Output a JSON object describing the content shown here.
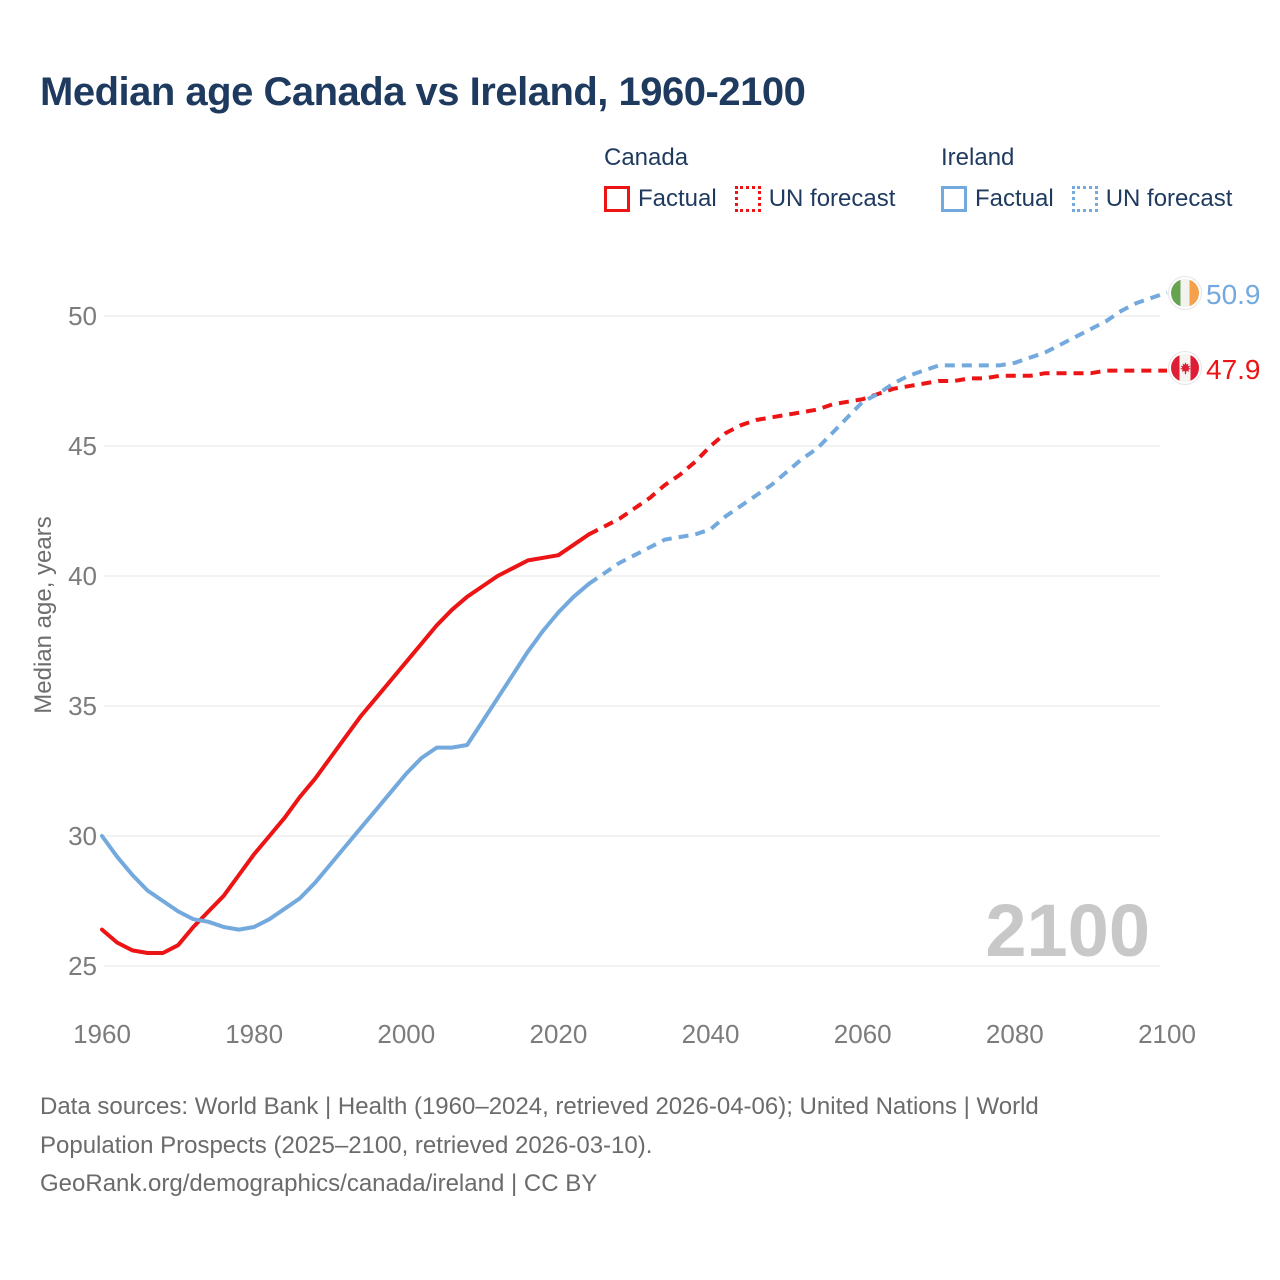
{
  "title": "Median age Canada vs Ireland, 1960-2100",
  "legend": {
    "canada_header": "Canada",
    "ireland_header": "Ireland",
    "factual_label": "Factual",
    "forecast_label": "UN forecast"
  },
  "colors": {
    "canada": "#ec1414",
    "ireland": "#73a9dd",
    "grid": "#ededed",
    "tick_text": "#7c7c7c",
    "title_text": "#1e3a5f",
    "watermark": "#c8c8c8"
  },
  "watermark": "2100",
  "chart_data": {
    "type": "line",
    "title": "Median age Canada vs Ireland, 1960-2100",
    "xlabel": "",
    "ylabel": "Median age, years",
    "x_ticks": [
      "1960",
      "1980",
      "2000",
      "2020",
      "2040",
      "2060",
      "2080",
      "2100"
    ],
    "y_ticks": [
      "25",
      "30",
      "35",
      "40",
      "45",
      "50"
    ],
    "xlim": [
      1960,
      2100
    ],
    "ylim": [
      25,
      51
    ],
    "grid": "horizontal only",
    "legend_position": "top-right",
    "series": [
      {
        "name": "Canada Factual",
        "color_key": "canada",
        "style": "solid",
        "points": [
          [
            1960,
            26.4
          ],
          [
            1962,
            25.9
          ],
          [
            1964,
            25.6
          ],
          [
            1966,
            25.5
          ],
          [
            1968,
            25.5
          ],
          [
            1970,
            25.8
          ],
          [
            1972,
            26.5
          ],
          [
            1974,
            27.1
          ],
          [
            1976,
            27.7
          ],
          [
            1978,
            28.5
          ],
          [
            1980,
            29.3
          ],
          [
            1982,
            30.0
          ],
          [
            1984,
            30.7
          ],
          [
            1986,
            31.5
          ],
          [
            1988,
            32.2
          ],
          [
            1990,
            33.0
          ],
          [
            1992,
            33.8
          ],
          [
            1994,
            34.6
          ],
          [
            1996,
            35.3
          ],
          [
            1998,
            36.0
          ],
          [
            2000,
            36.7
          ],
          [
            2002,
            37.4
          ],
          [
            2004,
            38.1
          ],
          [
            2006,
            38.7
          ],
          [
            2008,
            39.2
          ],
          [
            2010,
            39.6
          ],
          [
            2012,
            40.0
          ],
          [
            2014,
            40.3
          ],
          [
            2016,
            40.6
          ],
          [
            2018,
            40.7
          ],
          [
            2020,
            40.8
          ],
          [
            2022,
            41.2
          ],
          [
            2024,
            41.6
          ]
        ]
      },
      {
        "name": "Canada UN forecast",
        "color_key": "canada",
        "style": "dashed",
        "points": [
          [
            2024,
            41.6
          ],
          [
            2026,
            41.9
          ],
          [
            2028,
            42.2
          ],
          [
            2030,
            42.6
          ],
          [
            2032,
            43.0
          ],
          [
            2034,
            43.5
          ],
          [
            2036,
            43.9
          ],
          [
            2038,
            44.4
          ],
          [
            2040,
            45.0
          ],
          [
            2042,
            45.5
          ],
          [
            2044,
            45.8
          ],
          [
            2046,
            46.0
          ],
          [
            2048,
            46.1
          ],
          [
            2050,
            46.2
          ],
          [
            2052,
            46.3
          ],
          [
            2054,
            46.4
          ],
          [
            2056,
            46.6
          ],
          [
            2058,
            46.7
          ],
          [
            2060,
            46.8
          ],
          [
            2062,
            47.0
          ],
          [
            2064,
            47.2
          ],
          [
            2066,
            47.3
          ],
          [
            2068,
            47.4
          ],
          [
            2070,
            47.5
          ],
          [
            2072,
            47.5
          ],
          [
            2074,
            47.6
          ],
          [
            2076,
            47.6
          ],
          [
            2078,
            47.7
          ],
          [
            2080,
            47.7
          ],
          [
            2082,
            47.7
          ],
          [
            2084,
            47.8
          ],
          [
            2086,
            47.8
          ],
          [
            2088,
            47.8
          ],
          [
            2090,
            47.8
          ],
          [
            2092,
            47.9
          ],
          [
            2094,
            47.9
          ],
          [
            2096,
            47.9
          ],
          [
            2098,
            47.9
          ],
          [
            2100,
            47.9
          ]
        ]
      },
      {
        "name": "Ireland Factual",
        "color_key": "ireland",
        "style": "solid",
        "points": [
          [
            1960,
            30.0
          ],
          [
            1962,
            29.2
          ],
          [
            1964,
            28.5
          ],
          [
            1966,
            27.9
          ],
          [
            1968,
            27.5
          ],
          [
            1970,
            27.1
          ],
          [
            1972,
            26.8
          ],
          [
            1974,
            26.7
          ],
          [
            1976,
            26.5
          ],
          [
            1978,
            26.4
          ],
          [
            1980,
            26.5
          ],
          [
            1982,
            26.8
          ],
          [
            1984,
            27.2
          ],
          [
            1986,
            27.6
          ],
          [
            1988,
            28.2
          ],
          [
            1990,
            28.9
          ],
          [
            1992,
            29.6
          ],
          [
            1994,
            30.3
          ],
          [
            1996,
            31.0
          ],
          [
            1998,
            31.7
          ],
          [
            2000,
            32.4
          ],
          [
            2002,
            33.0
          ],
          [
            2004,
            33.4
          ],
          [
            2006,
            33.4
          ],
          [
            2008,
            33.5
          ],
          [
            2010,
            34.4
          ],
          [
            2012,
            35.3
          ],
          [
            2014,
            36.2
          ],
          [
            2016,
            37.1
          ],
          [
            2018,
            37.9
          ],
          [
            2020,
            38.6
          ],
          [
            2022,
            39.2
          ],
          [
            2024,
            39.7
          ]
        ]
      },
      {
        "name": "Ireland UN forecast",
        "color_key": "ireland",
        "style": "dashed",
        "points": [
          [
            2024,
            39.7
          ],
          [
            2026,
            40.1
          ],
          [
            2028,
            40.5
          ],
          [
            2030,
            40.8
          ],
          [
            2032,
            41.1
          ],
          [
            2034,
            41.4
          ],
          [
            2036,
            41.5
          ],
          [
            2038,
            41.6
          ],
          [
            2040,
            41.8
          ],
          [
            2042,
            42.3
          ],
          [
            2044,
            42.7
          ],
          [
            2046,
            43.1
          ],
          [
            2048,
            43.5
          ],
          [
            2050,
            44.0
          ],
          [
            2052,
            44.5
          ],
          [
            2054,
            44.9
          ],
          [
            2056,
            45.5
          ],
          [
            2058,
            46.1
          ],
          [
            2060,
            46.7
          ],
          [
            2062,
            47.0
          ],
          [
            2064,
            47.4
          ],
          [
            2066,
            47.7
          ],
          [
            2068,
            47.9
          ],
          [
            2070,
            48.1
          ],
          [
            2072,
            48.1
          ],
          [
            2074,
            48.1
          ],
          [
            2076,
            48.1
          ],
          [
            2078,
            48.1
          ],
          [
            2080,
            48.2
          ],
          [
            2082,
            48.4
          ],
          [
            2084,
            48.6
          ],
          [
            2086,
            48.9
          ],
          [
            2088,
            49.2
          ],
          [
            2090,
            49.5
          ],
          [
            2092,
            49.8
          ],
          [
            2094,
            50.2
          ],
          [
            2096,
            50.5
          ],
          [
            2098,
            50.7
          ],
          [
            2100,
            50.9
          ]
        ]
      }
    ],
    "end_labels": [
      {
        "country": "Ireland",
        "value": "50.9"
      },
      {
        "country": "Canada",
        "value": "47.9"
      }
    ],
    "watermark": "2100"
  },
  "footer": {
    "line1": "Data sources: World Bank | Health (1960–2024, retrieved 2026-04-06); United Nations | World",
    "line2": "Population Prospects (2025–2100, retrieved 2026-03-10).",
    "line3": "GeoRank.org/demographics/canada/ireland | CC BY"
  }
}
